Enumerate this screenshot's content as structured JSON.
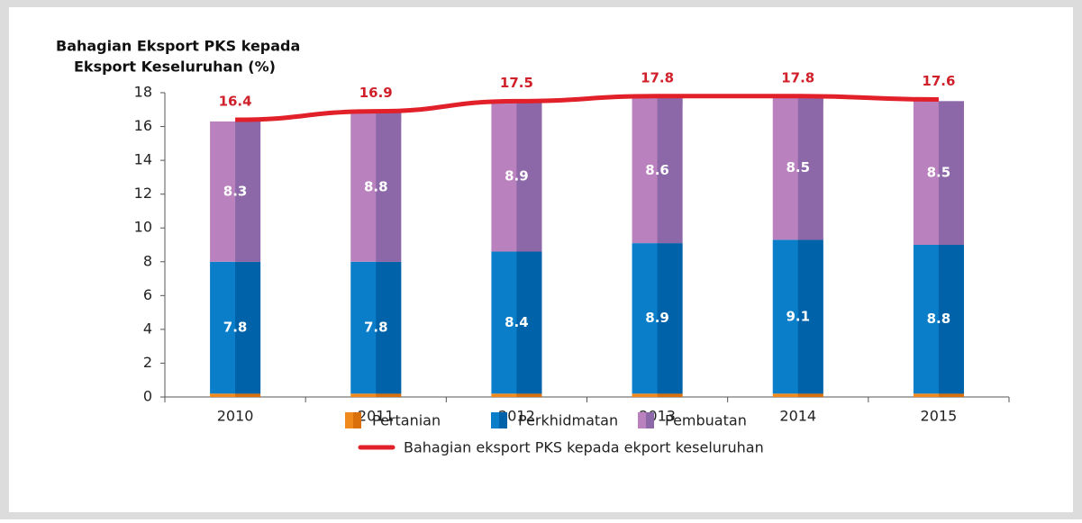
{
  "chart_data": {
    "type": "bar",
    "stacked": true,
    "title": [
      "Bahagian Eksport PKS kepada",
      "Eksport Keseluruhan (%)"
    ],
    "categories": [
      "2010",
      "2011",
      "2012",
      "2013",
      "2014",
      "2015"
    ],
    "series": [
      {
        "name": "Pertanian",
        "color": "#f08a1c",
        "shade": "#d9700c",
        "values": [
          0.2,
          0.2,
          0.2,
          0.2,
          0.2,
          0.2
        ]
      },
      {
        "name": "Perkhidmatan",
        "color": "#0a7ec9",
        "shade": "#0062a8",
        "values": [
          7.8,
          7.8,
          8.4,
          8.9,
          9.1,
          8.8
        ]
      },
      {
        "name": "Pembuatan",
        "color": "#b981bd",
        "shade": "#8c68a8",
        "values": [
          8.3,
          8.8,
          8.9,
          8.6,
          8.5,
          8.5
        ]
      },
      {
        "name": "Bahagian eksport PKS kepada ekport keseluruhan",
        "type": "line",
        "color": "#e2202a",
        "values": [
          16.4,
          16.9,
          17.5,
          17.8,
          17.8,
          17.6
        ]
      }
    ],
    "ylim": [
      0,
      18
    ],
    "yticks": [
      0,
      2,
      4,
      6,
      8,
      10,
      12,
      14,
      16,
      18
    ],
    "grid": false
  }
}
